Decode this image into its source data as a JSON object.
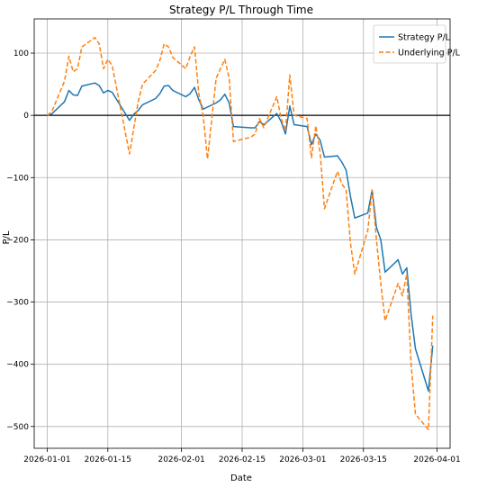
{
  "chart_data": {
    "type": "line",
    "title": "Strategy P/L Through Time",
    "xlabel": "Date",
    "ylabel": "P/L",
    "x_ticks": [
      "2026-01-01",
      "2026-01-15",
      "2026-02-01",
      "2026-02-15",
      "2026-03-01",
      "2026-03-15",
      "2026-04-01"
    ],
    "y_ticks": [
      100,
      0,
      -100,
      -200,
      -300,
      -400,
      -500
    ],
    "xlim": [
      "2025-12-29",
      "2026-04-04"
    ],
    "ylim": [
      -535,
      155
    ],
    "grid": true,
    "zero_line": 0,
    "legend_position": "top-right",
    "series": [
      {
        "name": "Strategy P/L",
        "color": "#1f77b4",
        "style": "solid",
        "points": [
          [
            "2026-01-01",
            0
          ],
          [
            "2026-01-02",
            2
          ],
          [
            "2026-01-05",
            22
          ],
          [
            "2026-01-06",
            40
          ],
          [
            "2026-01-07",
            33
          ],
          [
            "2026-01-08",
            32
          ],
          [
            "2026-01-09",
            47
          ],
          [
            "2026-01-12",
            52
          ],
          [
            "2026-01-13",
            48
          ],
          [
            "2026-01-14",
            36
          ],
          [
            "2026-01-15",
            40
          ],
          [
            "2026-01-16",
            37
          ],
          [
            "2026-01-20",
            -8
          ],
          [
            "2026-01-21",
            2
          ],
          [
            "2026-01-22",
            8
          ],
          [
            "2026-01-23",
            17
          ],
          [
            "2026-01-26",
            27
          ],
          [
            "2026-01-27",
            35
          ],
          [
            "2026-01-28",
            47
          ],
          [
            "2026-01-29",
            48
          ],
          [
            "2026-01-30",
            40
          ],
          [
            "2026-02-02",
            30
          ],
          [
            "2026-02-03",
            35
          ],
          [
            "2026-02-04",
            45
          ],
          [
            "2026-02-05",
            25
          ],
          [
            "2026-02-06",
            10
          ],
          [
            "2026-02-09",
            20
          ],
          [
            "2026-02-10",
            25
          ],
          [
            "2026-02-11",
            34
          ],
          [
            "2026-02-12",
            20
          ],
          [
            "2026-02-13",
            -18
          ],
          [
            "2026-02-17",
            -20
          ],
          [
            "2026-02-18",
            -20
          ],
          [
            "2026-02-19",
            -10
          ],
          [
            "2026-02-20",
            -15
          ],
          [
            "2026-02-23",
            3
          ],
          [
            "2026-02-24",
            -10
          ],
          [
            "2026-02-25",
            -30
          ],
          [
            "2026-02-26",
            15
          ],
          [
            "2026-02-27",
            -15
          ],
          [
            "2026-03-02",
            -18
          ],
          [
            "2026-03-03",
            -47
          ],
          [
            "2026-03-04",
            -30
          ],
          [
            "2026-03-05",
            -40
          ],
          [
            "2026-03-06",
            -67
          ],
          [
            "2026-03-09",
            -65
          ],
          [
            "2026-03-10",
            -75
          ],
          [
            "2026-03-11",
            -88
          ],
          [
            "2026-03-12",
            -130
          ],
          [
            "2026-03-13",
            -165
          ],
          [
            "2026-03-16",
            -157
          ],
          [
            "2026-03-17",
            -120
          ],
          [
            "2026-03-18",
            -180
          ],
          [
            "2026-03-19",
            -200
          ],
          [
            "2026-03-20",
            -252
          ],
          [
            "2026-03-23",
            -232
          ],
          [
            "2026-03-24",
            -255
          ],
          [
            "2026-03-25",
            -245
          ],
          [
            "2026-03-26",
            -320
          ],
          [
            "2026-03-27",
            -375
          ],
          [
            "2026-03-30",
            -443
          ],
          [
            "2026-03-31",
            -370
          ]
        ]
      },
      {
        "name": "Underlying P/L",
        "color": "#ff7f0e",
        "style": "dashed",
        "points": [
          [
            "2026-01-01",
            0
          ],
          [
            "2026-01-02",
            5
          ],
          [
            "2026-01-05",
            55
          ],
          [
            "2026-01-06",
            95
          ],
          [
            "2026-01-07",
            70
          ],
          [
            "2026-01-08",
            75
          ],
          [
            "2026-01-09",
            110
          ],
          [
            "2026-01-12",
            125
          ],
          [
            "2026-01-13",
            115
          ],
          [
            "2026-01-14",
            75
          ],
          [
            "2026-01-15",
            90
          ],
          [
            "2026-01-16",
            80
          ],
          [
            "2026-01-20",
            -62
          ],
          [
            "2026-01-21",
            -20
          ],
          [
            "2026-01-22",
            22
          ],
          [
            "2026-01-23",
            50
          ],
          [
            "2026-01-26",
            72
          ],
          [
            "2026-01-27",
            88
          ],
          [
            "2026-01-28",
            115
          ],
          [
            "2026-01-29",
            110
          ],
          [
            "2026-01-30",
            93
          ],
          [
            "2026-02-02",
            75
          ],
          [
            "2026-02-03",
            95
          ],
          [
            "2026-02-04",
            110
          ],
          [
            "2026-02-05",
            35
          ],
          [
            "2026-02-06",
            0
          ],
          [
            "2026-02-07",
            -70
          ],
          [
            "2026-02-09",
            60
          ],
          [
            "2026-02-10",
            75
          ],
          [
            "2026-02-11",
            90
          ],
          [
            "2026-02-12",
            60
          ],
          [
            "2026-02-13",
            -42
          ],
          [
            "2026-02-17",
            -35
          ],
          [
            "2026-02-18",
            -30
          ],
          [
            "2026-02-19",
            -5
          ],
          [
            "2026-02-20",
            -20
          ],
          [
            "2026-02-23",
            30
          ],
          [
            "2026-02-24",
            -5
          ],
          [
            "2026-02-25",
            -25
          ],
          [
            "2026-02-26",
            65
          ],
          [
            "2026-02-27",
            0
          ],
          [
            "2026-03-02",
            -5
          ],
          [
            "2026-03-03",
            -68
          ],
          [
            "2026-03-04",
            -17
          ],
          [
            "2026-03-05",
            -60
          ],
          [
            "2026-03-06",
            -150
          ],
          [
            "2026-03-09",
            -90
          ],
          [
            "2026-03-10",
            -110
          ],
          [
            "2026-03-11",
            -120
          ],
          [
            "2026-03-12",
            -205
          ],
          [
            "2026-03-13",
            -255
          ],
          [
            "2026-03-16",
            -185
          ],
          [
            "2026-03-17",
            -120
          ],
          [
            "2026-03-18",
            -200
          ],
          [
            "2026-03-19",
            -270
          ],
          [
            "2026-03-20",
            -330
          ],
          [
            "2026-03-23",
            -270
          ],
          [
            "2026-03-24",
            -290
          ],
          [
            "2026-03-25",
            -255
          ],
          [
            "2026-03-26",
            -400
          ],
          [
            "2026-03-27",
            -480
          ],
          [
            "2026-03-30",
            -505
          ],
          [
            "2026-03-31",
            -322
          ]
        ]
      }
    ]
  }
}
